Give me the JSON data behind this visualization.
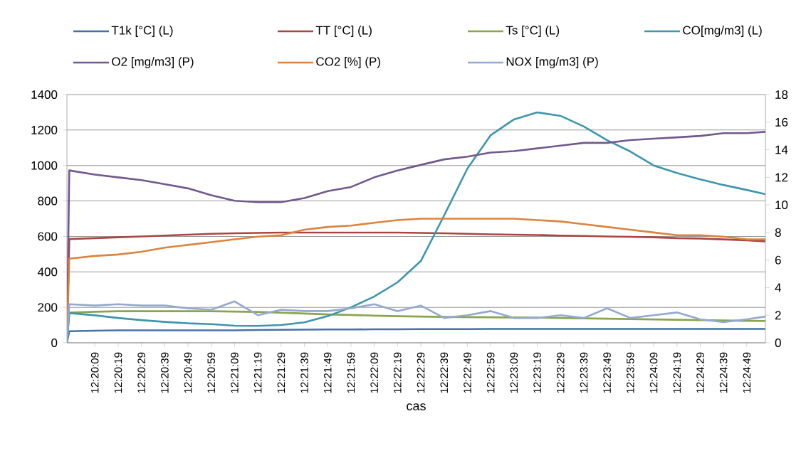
{
  "chart_data": {
    "type": "line",
    "xlabel": "cas",
    "x": [
      12.3325,
      12.33278,
      12.33583,
      12.33861,
      12.34139,
      12.34417,
      12.34694,
      12.34972,
      12.3525,
      12.35528,
      12.35806,
      12.36083,
      12.36361,
      12.36639,
      12.36917,
      12.37194,
      12.37472,
      12.3775,
      12.38028,
      12.38306,
      12.38583,
      12.38861,
      12.39139,
      12.39417,
      12.39694,
      12.39972,
      12.4025,
      12.40528,
      12.40806,
      12.41083,
      12.41361,
      12.41583
    ],
    "xlim": [
      12.3325,
      12.41583
    ],
    "xticks": [
      {
        "value": 12.33583,
        "label": "12:20:09"
      },
      {
        "value": 12.33861,
        "label": "12:20:19"
      },
      {
        "value": 12.34139,
        "label": "12:20:29"
      },
      {
        "value": 12.34417,
        "label": "12:20:39"
      },
      {
        "value": 12.34694,
        "label": "12:20:49"
      },
      {
        "value": 12.34972,
        "label": "12:20:59"
      },
      {
        "value": 12.3525,
        "label": "12:21:09"
      },
      {
        "value": 12.35528,
        "label": "12:21:19"
      },
      {
        "value": 12.35806,
        "label": "12:21:29"
      },
      {
        "value": 12.36083,
        "label": "12:21:39"
      },
      {
        "value": 12.36361,
        "label": "12:21:49"
      },
      {
        "value": 12.36639,
        "label": "12:21:59"
      },
      {
        "value": 12.36917,
        "label": "12:22:09"
      },
      {
        "value": 12.37194,
        "label": "12:22:19"
      },
      {
        "value": 12.37472,
        "label": "12:22:29"
      },
      {
        "value": 12.3775,
        "label": "12:22:39"
      },
      {
        "value": 12.38028,
        "label": "12:22:49"
      },
      {
        "value": 12.38306,
        "label": "12:22:59"
      },
      {
        "value": 12.38583,
        "label": "12:23:09"
      },
      {
        "value": 12.38861,
        "label": "12:23:19"
      },
      {
        "value": 12.39139,
        "label": "12:23:29"
      },
      {
        "value": 12.39417,
        "label": "12:23:39"
      },
      {
        "value": 12.39694,
        "label": "12:23:49"
      },
      {
        "value": 12.39972,
        "label": "12:23:59"
      },
      {
        "value": 12.4025,
        "label": "12:24:09"
      },
      {
        "value": 12.40528,
        "label": "12:24:19"
      },
      {
        "value": 12.40806,
        "label": "12:24:29"
      },
      {
        "value": 12.41083,
        "label": "12:24:39"
      },
      {
        "value": 12.41361,
        "label": "12:24:49"
      }
    ],
    "ylim": [
      0,
      1400
    ],
    "yticks": [
      0,
      200,
      400,
      600,
      800,
      1000,
      1200,
      1400
    ],
    "y2lim": [
      0,
      18
    ],
    "y2ticks": [
      0,
      2,
      4,
      6,
      8,
      10,
      12,
      14,
      16,
      18
    ],
    "grid": "y",
    "legend": "top",
    "series": [
      {
        "name": "T1k [°C]  (L)",
        "color": "#4572a7",
        "values": [
          0,
          65,
          68,
          70,
          70,
          70,
          70,
          70,
          70,
          72,
          73,
          74,
          75,
          75,
          76,
          76,
          77,
          77,
          77,
          78,
          78,
          78,
          78,
          78,
          78,
          78,
          78,
          78,
          78,
          78,
          78,
          78
        ]
      },
      {
        "name": "TT [°C]  (L)",
        "color": "#aa4643",
        "values": [
          0,
          585,
          590,
          595,
          600,
          605,
          610,
          615,
          618,
          620,
          622,
          622,
          622,
          622,
          622,
          622,
          620,
          618,
          615,
          612,
          610,
          608,
          605,
          603,
          600,
          598,
          595,
          590,
          588,
          583,
          578,
          572
        ]
      },
      {
        "name": "Ts [°C] (L)",
        "color": "#89a54e",
        "values": [
          0,
          170,
          175,
          178,
          178,
          178,
          178,
          178,
          176,
          174,
          170,
          165,
          160,
          157,
          153,
          150,
          148,
          146,
          145,
          144,
          143,
          142,
          140,
          138,
          136,
          134,
          132,
          130,
          128,
          126,
          124,
          123
        ]
      },
      {
        "name": "CO[mg/m3]  (L)",
        "color": "#3d96ae",
        "values": [
          0,
          168,
          155,
          140,
          128,
          118,
          110,
          105,
          96,
          95,
          100,
          115,
          150,
          200,
          261,
          341,
          461,
          718,
          983,
          1171,
          1260,
          1300,
          1280,
          1220,
          1143,
          1079,
          1000,
          958,
          922,
          890,
          862,
          838
        ]
      },
      {
        "name": "O2 [mg/m3] (P)",
        "color": "#71588f",
        "axis": "y2",
        "values": [
          0,
          12.5,
          12.2,
          12.0,
          11.8,
          11.5,
          11.2,
          10.7,
          10.3,
          10.2,
          10.2,
          10.5,
          11.0,
          11.3,
          12.0,
          12.5,
          12.9,
          13.3,
          13.5,
          13.8,
          13.9,
          14.1,
          14.3,
          14.5,
          14.5,
          14.7,
          14.8,
          14.9,
          15.0,
          15.2,
          15.2,
          15.3
        ]
      },
      {
        "name": "CO2 [%] (P)",
        "color": "#db843d",
        "axis": "y2",
        "values": [
          0,
          6.1,
          6.3,
          6.4,
          6.6,
          6.9,
          7.1,
          7.3,
          7.5,
          7.7,
          7.8,
          8.2,
          8.4,
          8.5,
          8.7,
          8.9,
          9.0,
          9.0,
          9.0,
          9.0,
          9.0,
          8.9,
          8.8,
          8.6,
          8.4,
          8.2,
          8.0,
          7.8,
          7.8,
          7.7,
          7.5,
          7.5
        ]
      },
      {
        "name": "NOX  [mg/m3]  (P)",
        "color": "#93a9cf",
        "axis": "y2",
        "values": [
          0,
          2.8,
          2.7,
          2.8,
          2.7,
          2.7,
          2.5,
          2.4,
          3.0,
          2.0,
          2.4,
          2.3,
          2.3,
          2.5,
          2.8,
          2.3,
          2.7,
          1.8,
          2.0,
          2.3,
          1.8,
          1.8,
          2.0,
          1.8,
          2.5,
          1.8,
          2.0,
          2.2,
          1.7,
          1.5,
          1.7,
          1.9
        ]
      }
    ]
  }
}
